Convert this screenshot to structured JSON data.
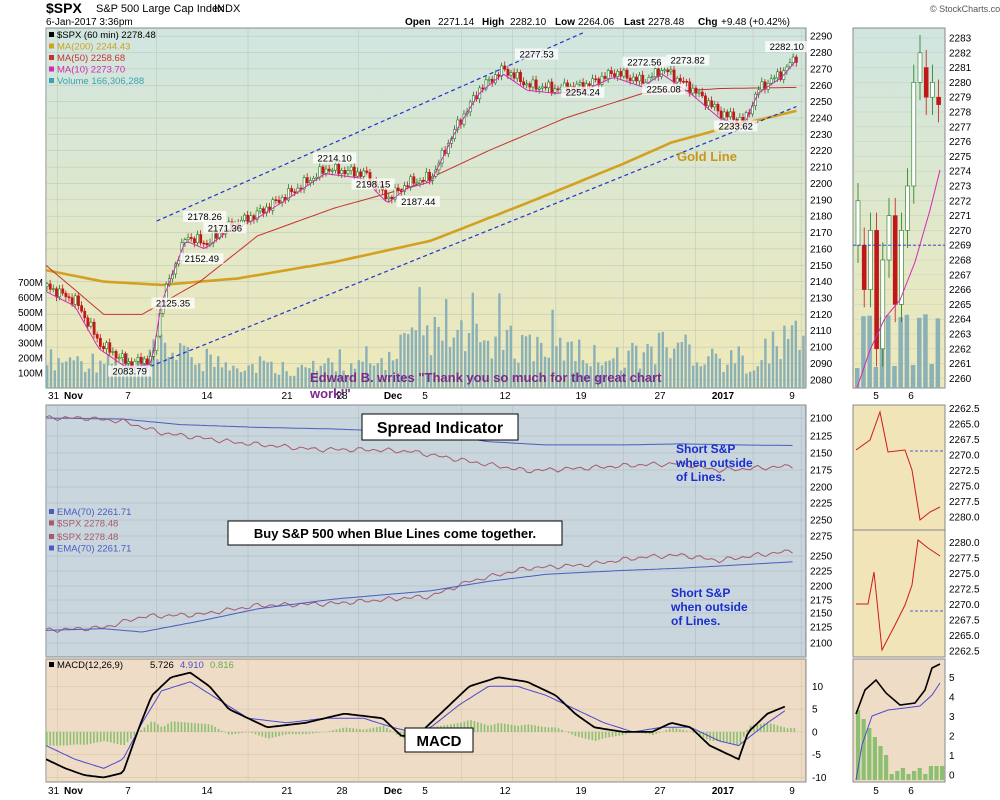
{
  "header": {
    "symbol": "$SPX",
    "name": "S&P 500 Large Cap Index",
    "exchange": "INDX",
    "datetime": "6-Jan-2017 3:36pm",
    "open_label": "Open",
    "open": "2271.14",
    "high_label": "High",
    "high": "2282.10",
    "low_label": "Low",
    "low": "2264.06",
    "last_label": "Last",
    "last": "2278.48",
    "chg_label": "Chg",
    "chg": "+9.48 (+0.42%)",
    "watermark": "© StockCharts.com"
  },
  "legend": [
    {
      "text": "$SPX (60 min) 2278.48",
      "color": "#000000"
    },
    {
      "text": "MA(200) 2244.43",
      "color": "#d4a020"
    },
    {
      "text": "MA(50) 2258.68",
      "color": "#c8322e"
    },
    {
      "text": "MA(10) 2273.70",
      "color": "#d22ab4"
    },
    {
      "text": "Volume 166,306,288",
      "color": "#3aa0b4"
    }
  ],
  "annotations": {
    "gold_line": "Gold Line",
    "edward_line1": "Edward B. writes \"Thank you so much for the great chart",
    "edward_line2": "work!\"",
    "spread_title": "Spread Indicator",
    "buy_text": "Buy S&P 500 when Blue Lines come together.",
    "short_upper": [
      "Short S&P",
      "when outside",
      "of Lines."
    ],
    "short_lower": [
      "Short S&P",
      "when outside",
      "of Lines."
    ],
    "macd_box": "MACD"
  },
  "spread_legend": {
    "upper": [
      "EMA(70) 2261.71",
      "$SPX 2278.48"
    ],
    "lower": [
      "$SPX 2278.48",
      "EMA(70) 2261.71"
    ]
  },
  "macd_legend": {
    "label": "MACD(12,26,9)",
    "v1": "5.726",
    "v2": "4.910",
    "v3": "0.816"
  },
  "x_axis": [
    "31",
    "Nov",
    "7",
    "14",
    "21",
    "28",
    "Dec",
    "5",
    "12",
    "19",
    "27",
    "2017",
    "9"
  ],
  "right_x_axis": [
    "5",
    "6"
  ],
  "colors": {
    "price_bg": "#e7ecd0",
    "spread_bg": "#c8d6de",
    "macd_bg": "#efdcc6",
    "up": "#1f7a1f",
    "down": "#c01818",
    "ma200": "#d4a020",
    "ma50": "#c8322e",
    "ma10": "#d22ab4",
    "volume": "#8ab0b8",
    "trend": "#2233cc",
    "ema": "#4a5cc0",
    "spx_line": "#a85a6a",
    "macd_hist": "#8cc070"
  },
  "chart_data": [
    {
      "type": "line",
      "title": "$SPX S&P 500 Large Cap Index (60 min)",
      "x": [
        "31",
        "Nov",
        "7",
        "14",
        "21",
        "28",
        "Dec",
        "5",
        "12",
        "19",
        "27",
        "2017",
        "9"
      ],
      "y_ticks": [
        "2290",
        "2280",
        "2270",
        "2260",
        "2250",
        "2240",
        "2230",
        "2220",
        "2210",
        "2200",
        "2190",
        "2180",
        "2170",
        "2160",
        "2150",
        "2140",
        "2130",
        "2120",
        "2110",
        "2100",
        "2090",
        "2080"
      ],
      "ylim": [
        2075,
        2295
      ],
      "price_path": [
        [
          0,
          2137
        ],
        [
          3,
          2128
        ],
        [
          5.5,
          2102
        ],
        [
          8.5,
          2090
        ],
        [
          11,
          2093
        ],
        [
          12,
          2130
        ],
        [
          14.5,
          2168
        ],
        [
          16.5,
          2163
        ],
        [
          18.5,
          2172
        ],
        [
          22,
          2182
        ],
        [
          26,
          2197
        ],
        [
          29,
          2209
        ],
        [
          33,
          2206
        ],
        [
          35.5,
          2191
        ],
        [
          37.5,
          2200
        ],
        [
          40,
          2204
        ],
        [
          42.5,
          2234
        ],
        [
          45,
          2258
        ],
        [
          47.5,
          2270
        ],
        [
          50,
          2260
        ],
        [
          53,
          2258
        ],
        [
          56,
          2260
        ],
        [
          59,
          2268
        ],
        [
          62,
          2262
        ],
        [
          64,
          2270
        ],
        [
          67,
          2258
        ],
        [
          70,
          2243
        ],
        [
          72.5,
          2238
        ],
        [
          74,
          2258
        ],
        [
          76.5,
          2268
        ],
        [
          78,
          2278.5
        ]
      ],
      "price_labels": [
        {
          "t": 8.7,
          "v": 2083.79,
          "text": "2083.79"
        },
        {
          "t": 13.2,
          "v": 2125.35,
          "text": "2125.35"
        },
        {
          "t": 16.2,
          "v": 2152.49,
          "text": "2152.49"
        },
        {
          "t": 16.5,
          "v": 2178.26,
          "text": "2178.26"
        },
        {
          "t": 18.6,
          "v": 2171.36,
          "text": "2171.36"
        },
        {
          "t": 30,
          "v": 2214.1,
          "text": "2214.10"
        },
        {
          "t": 34,
          "v": 2198.15,
          "text": "2198.15"
        },
        {
          "t": 38.7,
          "v": 2187.44,
          "text": "2187.44"
        },
        {
          "t": 51,
          "v": 2277.53,
          "text": "2277.53"
        },
        {
          "t": 55.8,
          "v": 2254.24,
          "text": "2254.24"
        },
        {
          "t": 62.2,
          "v": 2272.56,
          "text": "2272.56"
        },
        {
          "t": 64.2,
          "v": 2256.08,
          "text": "2256.08"
        },
        {
          "t": 66.7,
          "v": 2273.82,
          "text": "2273.82"
        },
        {
          "t": 71.7,
          "v": 2233.62,
          "text": "2233.62"
        },
        {
          "t": 77,
          "v": 2282.1,
          "text": "2282.10"
        }
      ],
      "ma200_path": [
        [
          0,
          2147
        ],
        [
          6,
          2140
        ],
        [
          12,
          2138
        ],
        [
          20,
          2142
        ],
        [
          30,
          2152
        ],
        [
          40,
          2165
        ],
        [
          50,
          2188
        ],
        [
          60,
          2212
        ],
        [
          65,
          2225
        ],
        [
          70,
          2233
        ],
        [
          78,
          2244.4
        ]
      ],
      "ma50_path": [
        [
          0,
          2150
        ],
        [
          6,
          2120
        ],
        [
          10,
          2120
        ],
        [
          16,
          2140
        ],
        [
          22,
          2168
        ],
        [
          30,
          2185
        ],
        [
          38,
          2198
        ],
        [
          46,
          2220
        ],
        [
          54,
          2240
        ],
        [
          62,
          2255
        ],
        [
          70,
          2258
        ],
        [
          78,
          2258.7
        ]
      ],
      "trend_upper": [
        [
          11.5,
          2177
        ],
        [
          55.8,
          2292
        ]
      ],
      "trend_lower": [
        [
          9.5,
          2085
        ],
        [
          78,
          2247
        ]
      ],
      "volume_ylim": [
        0,
        750
      ],
      "volume_ticks": [
        "700M",
        "600M",
        "500M",
        "400M",
        "300M",
        "200M",
        "100M"
      ],
      "volume_avg_by_session": [
        180,
        175,
        170,
        160,
        150,
        170,
        240,
        190,
        170,
        160,
        150,
        140,
        130,
        120,
        110,
        150,
        130,
        140,
        180,
        280,
        330,
        300,
        310,
        290,
        300,
        280,
        270,
        250,
        230,
        200,
        190,
        200,
        230,
        260,
        240,
        200,
        170,
        160,
        170,
        280,
        340
      ]
    },
    {
      "type": "line",
      "title": "Spread Indicator",
      "series": [
        {
          "name": "EMA(70) 2261.71",
          "points": [
            [
              0,
              2107
            ],
            [
              8,
              2105
            ],
            [
              14,
              2095
            ],
            [
              22,
              2090
            ],
            [
              30,
              2087
            ],
            [
              40,
              2080
            ],
            [
              46,
              2064
            ],
            [
              52,
              2058
            ],
            [
              60,
              2058
            ],
            [
              66,
              2060
            ],
            [
              72,
              2058
            ],
            [
              78,
              2057
            ]
          ]
        },
        {
          "name": "$SPX 2278.48",
          "points": [
            [
              0,
              2107
            ],
            [
              4,
              2107
            ],
            [
              8,
              2101
            ],
            [
              12,
              2080
            ],
            [
              20,
              2062
            ],
            [
              28,
              2050
            ],
            [
              34,
              2049
            ],
            [
              38,
              2046
            ],
            [
              44,
              2028
            ],
            [
              50,
              2011
            ],
            [
              56,
              2016
            ],
            [
              62,
              2022
            ],
            [
              66,
              2024
            ],
            [
              70,
              2012
            ],
            [
              74,
              2016
            ],
            [
              78,
              2020
            ]
          ]
        },
        {
          "name": "$SPX 2278.48",
          "points": [
            [
              0,
              2123
            ],
            [
              6,
              2128
            ],
            [
              10,
              2148
            ],
            [
              16,
              2152
            ],
            [
              22,
              2168
            ],
            [
              30,
              2172
            ],
            [
              36,
              2180
            ],
            [
              40,
              2185
            ],
            [
              44,
              2212
            ],
            [
              50,
              2236
            ],
            [
              56,
              2242
            ],
            [
              62,
              2256
            ],
            [
              66,
              2260
            ],
            [
              70,
              2250
            ],
            [
              74,
              2260
            ],
            [
              78,
              2268
            ]
          ]
        },
        {
          "name": "EMA(70) 2261.71",
          "points": [
            [
              0,
              2123
            ],
            [
              6,
              2126
            ],
            [
              10,
              2120
            ],
            [
              16,
              2140
            ],
            [
              22,
              2162
            ],
            [
              30,
              2180
            ],
            [
              40,
              2195
            ],
            [
              46,
              2212
            ],
            [
              52,
              2225
            ],
            [
              60,
              2232
            ],
            [
              66,
              2236
            ],
            [
              72,
              2242
            ],
            [
              78,
              2248
            ]
          ]
        }
      ],
      "y_ticks": [
        "2100",
        "2125",
        "2150",
        "2175",
        "2200",
        "2225",
        "2250",
        "2275",
        "2250",
        "2225",
        "2200",
        "2175",
        "2150",
        "2125",
        "2100"
      ]
    },
    {
      "type": "line",
      "title": "MACD(12,26,9)",
      "ylim": [
        -11,
        16
      ],
      "y_ticks": [
        "10",
        "5",
        "0",
        "-5",
        "-10"
      ],
      "macd_path": [
        [
          0,
          -6
        ],
        [
          2,
          -8
        ],
        [
          4,
          -9.5
        ],
        [
          6,
          -10
        ],
        [
          8,
          -9
        ],
        [
          9.5,
          0
        ],
        [
          11,
          8
        ],
        [
          13,
          12
        ],
        [
          15,
          13
        ],
        [
          17,
          10
        ],
        [
          19,
          5
        ],
        [
          23,
          1
        ],
        [
          27,
          2
        ],
        [
          31,
          4
        ],
        [
          35,
          3
        ],
        [
          37,
          -1
        ],
        [
          39,
          0
        ],
        [
          41,
          4
        ],
        [
          44,
          10
        ],
        [
          47,
          12
        ],
        [
          50,
          11
        ],
        [
          53,
          8
        ],
        [
          55,
          4
        ],
        [
          57,
          1
        ],
        [
          60,
          0
        ],
        [
          63,
          0
        ],
        [
          65,
          2
        ],
        [
          67,
          1
        ],
        [
          69,
          -3
        ],
        [
          72,
          -6
        ],
        [
          73,
          0
        ],
        [
          75,
          4
        ],
        [
          77,
          5.726
        ]
      ],
      "signal_path": [
        [
          0,
          -3
        ],
        [
          3,
          -6
        ],
        [
          6,
          -8
        ],
        [
          8,
          -6
        ],
        [
          10,
          2
        ],
        [
          12,
          9
        ],
        [
          15,
          11
        ],
        [
          18,
          7
        ],
        [
          21,
          3
        ],
        [
          25,
          2
        ],
        [
          29,
          3
        ],
        [
          33,
          3
        ],
        [
          36,
          1
        ],
        [
          38,
          0
        ],
        [
          40,
          1
        ],
        [
          43,
          6
        ],
        [
          46,
          10
        ],
        [
          49,
          10
        ],
        [
          52,
          8
        ],
        [
          55,
          5
        ],
        [
          58,
          2
        ],
        [
          61,
          0
        ],
        [
          64,
          1
        ],
        [
          67,
          1
        ],
        [
          70,
          -2
        ],
        [
          72,
          -3
        ],
        [
          75,
          2
        ],
        [
          77,
          4.91
        ]
      ],
      "histogram_value": 0.816
    }
  ]
}
